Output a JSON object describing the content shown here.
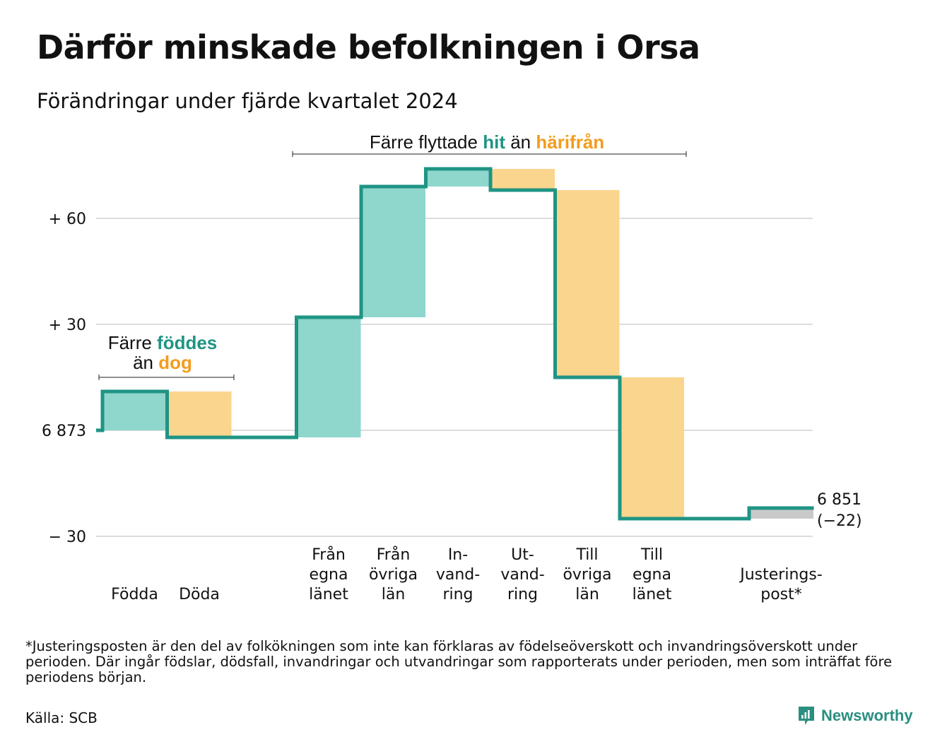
{
  "title": "Därför minskade befolkningen i Orsa",
  "subtitle": "Förändringar under fjärde kvartalet 2024",
  "colors": {
    "increase_fill": "#8fd6cd",
    "decrease_fill": "#fad58e",
    "adjustment_fill": "#c9c9c9",
    "line": "#1f9484",
    "accent_teal": "#1f9484",
    "accent_orange": "#f39c1e",
    "grid": "#dddddd"
  },
  "chart_data": {
    "type": "waterfall",
    "baseline": 6873,
    "y_ticks": [
      {
        "value": 60,
        "label": "+ 60"
      },
      {
        "value": 30,
        "label": "+ 30"
      },
      {
        "value": 0,
        "label": "6 873"
      },
      {
        "value": -30,
        "label": "− 30"
      }
    ],
    "ylim": [
      -30,
      75
    ],
    "steps": [
      {
        "label": "Födda",
        "delta": 11,
        "kind": "increase"
      },
      {
        "label": "Döda",
        "delta": -13,
        "kind": "decrease"
      },
      {
        "label": "",
        "delta": 0,
        "kind": "gap"
      },
      {
        "label": "Från egna länet",
        "lines": [
          "Från",
          "egna",
          "länet"
        ],
        "delta": 34,
        "kind": "increase"
      },
      {
        "label": "Från övriga län",
        "lines": [
          "Från",
          "övriga",
          "län"
        ],
        "delta": 37,
        "kind": "increase"
      },
      {
        "label": "Invandring",
        "lines": [
          "In-",
          "vand-",
          "ring"
        ],
        "delta": 5,
        "kind": "increase"
      },
      {
        "label": "Utvandring",
        "lines": [
          "Ut-",
          "vand-",
          "ring"
        ],
        "delta": -6,
        "kind": "decrease"
      },
      {
        "label": "Till övriga län",
        "lines": [
          "Till",
          "övriga",
          "län"
        ],
        "delta": -53,
        "kind": "decrease"
      },
      {
        "label": "Till egna länet",
        "lines": [
          "Till",
          "egna",
          "länet"
        ],
        "delta": -40,
        "kind": "decrease"
      },
      {
        "label": "",
        "delta": 0,
        "kind": "gap"
      },
      {
        "label": "Justeringspost*",
        "lines": [
          "Justerings-",
          "post*"
        ],
        "delta": 3,
        "kind": "adjustment"
      }
    ],
    "end_value_label": "6 851",
    "end_change_label": "(−22)",
    "annotations": {
      "births": {
        "pre": "Färre ",
        "key1": "föddes",
        "line2_pre": "än ",
        "key2": "dog"
      },
      "migration": {
        "pre": "Färre flyttade ",
        "key1": "hit",
        "mid": " än ",
        "key2": "härifrån"
      }
    }
  },
  "footnote": "*Justeringsposten är den del av folkökningen som inte kan förklaras av födelseöverskott och invandringsöverskott under perioden. Där ingår födslar, dödsfall, invandringar och utvandringar som rapporterats under perioden, men som inträffat före periodens början.",
  "source": "Källa: SCB",
  "brand": {
    "name": "Newsworthy",
    "icon": "newsworthy-logo-icon"
  }
}
